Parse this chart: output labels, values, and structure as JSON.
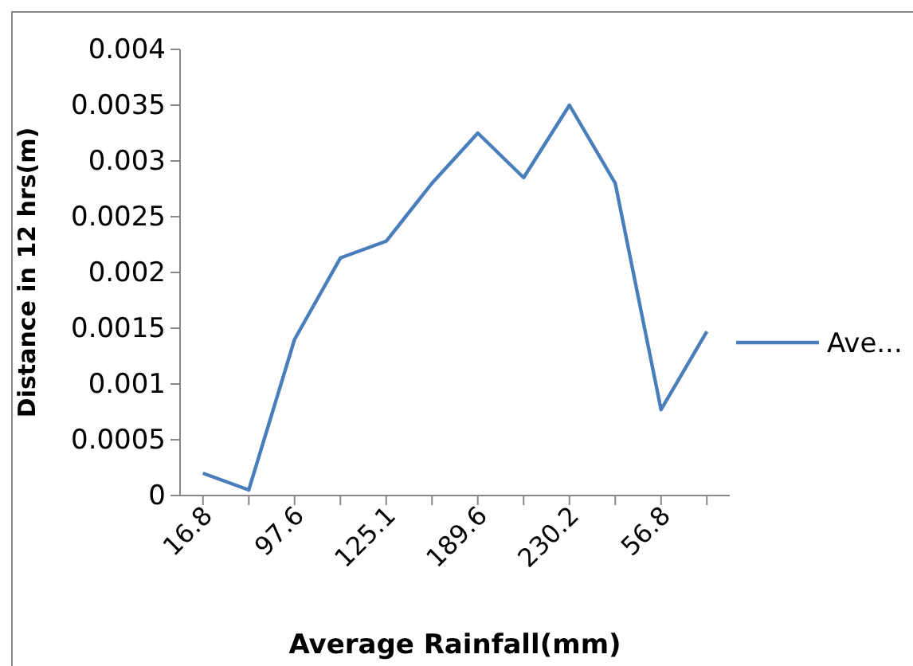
{
  "chart_data": {
    "type": "line",
    "xlabel": "Average Rainfall(mm)",
    "ylabel": "Distance in 12 hrs(m)",
    "categories": [
      "16.8",
      null,
      "97.6",
      null,
      "125.1",
      null,
      "189.6",
      null,
      "230.2",
      null,
      "56.8",
      null
    ],
    "series": [
      {
        "name": "Ave...",
        "color": "#4a7ebb",
        "values": [
          0.0002,
          5e-05,
          0.0014,
          0.00213,
          0.00228,
          0.0028,
          0.00325,
          0.00285,
          0.0035,
          0.0028,
          0.00077,
          0.00147
        ]
      }
    ],
    "ylim": [
      0,
      0.004
    ],
    "yticks": [
      0,
      0.0005,
      0.001,
      0.0015,
      0.002,
      0.0025,
      0.003,
      0.0035,
      0.004
    ],
    "legend": "right",
    "grid": false,
    "marker": "none",
    "line_style": "solid"
  }
}
